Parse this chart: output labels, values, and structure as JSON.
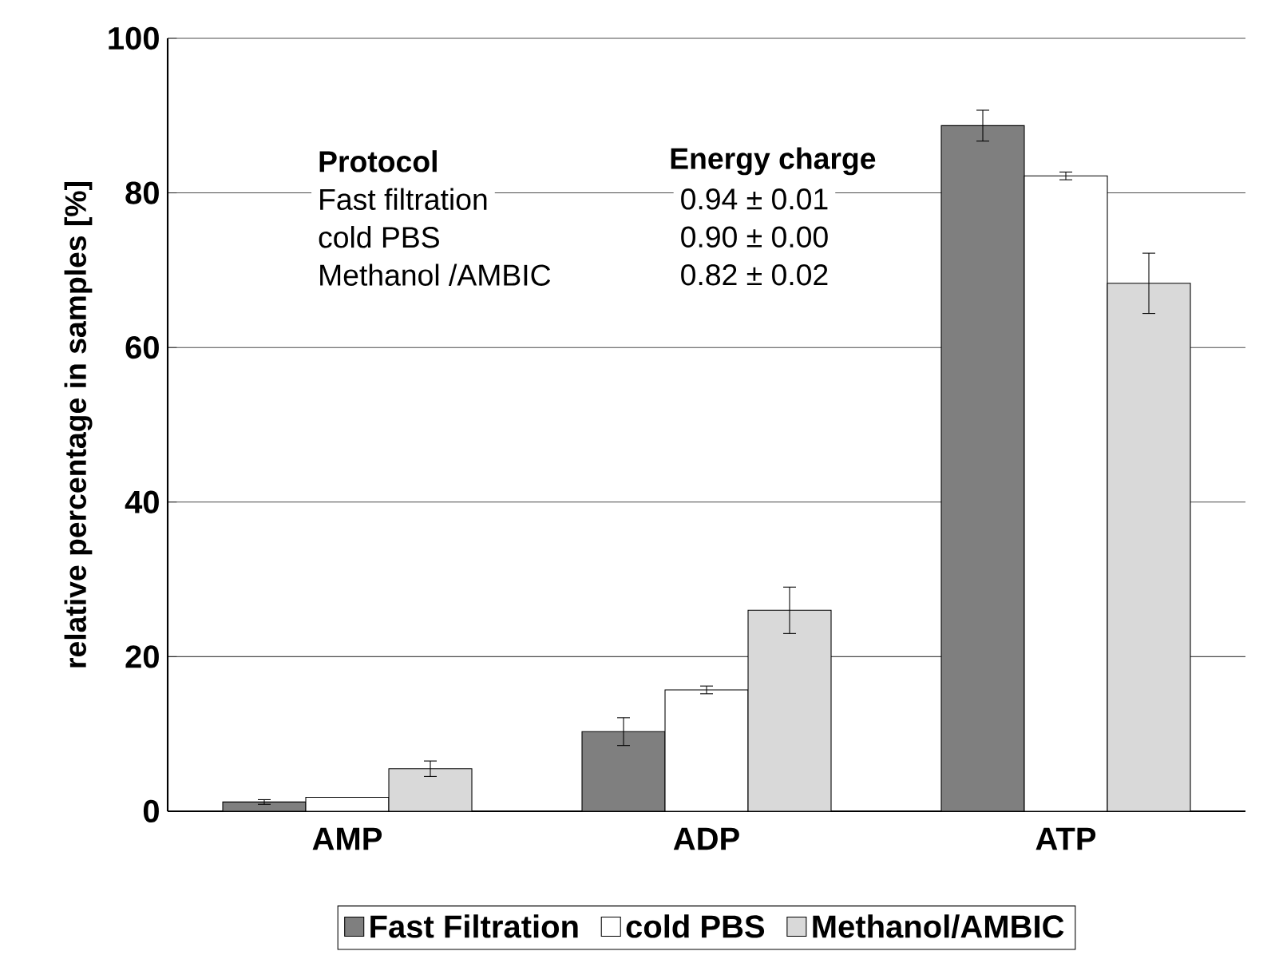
{
  "chart_data": {
    "type": "bar",
    "ylabel": "relative percentage in samples [%]",
    "categories": [
      "AMP",
      "ADP",
      "ATP"
    ],
    "series": [
      {
        "name": "Fast Filtration",
        "color": "#7f7f7f",
        "values": [
          1.2,
          10.3,
          88.7
        ],
        "errors": [
          0.3,
          1.8,
          2
        ]
      },
      {
        "name": "cold PBS",
        "color": "#ffffff",
        "values": [
          1.8,
          15.7,
          82.2
        ],
        "errors": [
          null,
          0.5,
          0.5
        ]
      },
      {
        "name": "Methanol/AMBIC",
        "color": "#d9d9d9",
        "values": [
          5.5,
          26,
          68.3
        ],
        "errors": [
          1,
          3,
          3.9
        ]
      }
    ],
    "ylim": [
      0,
      100
    ],
    "yticks": [
      0,
      20,
      40,
      60,
      80,
      100
    ],
    "grid": "y",
    "legend": "bottom",
    "annotations": [
      "Protocol",
      "Energy charge",
      "Fast filtration",
      "0.94 ± 0.01",
      "cold PBS",
      "0.90 ± 0.00",
      "Methanol /AMBIC",
      "0.82 ± 0.02"
    ]
  }
}
